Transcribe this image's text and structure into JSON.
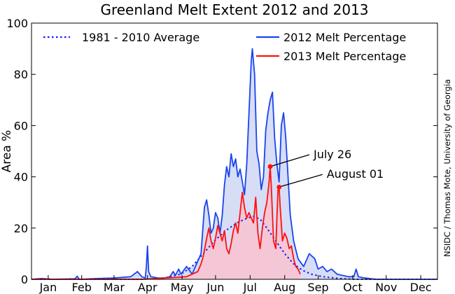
{
  "chart_data": {
    "type": "area",
    "title": "Greenland Melt Extent 2012 and 2013",
    "ylabel": "Area %",
    "xlabel": "",
    "ylim": [
      0,
      100
    ],
    "y_ticks": [
      0,
      20,
      40,
      60,
      80,
      100
    ],
    "x_unit": "day of year",
    "xlim": [
      1,
      365
    ],
    "month_ticks": [
      {
        "label": "Jan",
        "day": 16
      },
      {
        "label": "Feb",
        "day": 46
      },
      {
        "label": "Mar",
        "day": 75
      },
      {
        "label": "Apr",
        "day": 105
      },
      {
        "label": "May",
        "day": 136
      },
      {
        "label": "Jun",
        "day": 166
      },
      {
        "label": "Jul",
        "day": 197
      },
      {
        "label": "Aug",
        "day": 228
      },
      {
        "label": "Sep",
        "day": 258
      },
      {
        "label": "Oct",
        "day": 289
      },
      {
        "label": "Nov",
        "day": 319
      },
      {
        "label": "Dec",
        "day": 350
      }
    ],
    "grid": false,
    "legend_position": "top",
    "source_credit": "NSIDC / Thomas Mote, University of Georgia",
    "series": [
      {
        "name": "1981 - 2010 Average",
        "style": "dotted",
        "color": "#1a1aff",
        "fill": "#d6ddf5",
        "points": [
          [
            1,
            0
          ],
          [
            100,
            0
          ],
          [
            120,
            0.5
          ],
          [
            135,
            2
          ],
          [
            145,
            5
          ],
          [
            155,
            10
          ],
          [
            165,
            15
          ],
          [
            175,
            19
          ],
          [
            185,
            22
          ],
          [
            195,
            24
          ],
          [
            200,
            24.5
          ],
          [
            206,
            23.5
          ],
          [
            212,
            20
          ],
          [
            220,
            15
          ],
          [
            228,
            10
          ],
          [
            236,
            6
          ],
          [
            244,
            3.5
          ],
          [
            252,
            2
          ],
          [
            262,
            1
          ],
          [
            275,
            0.4
          ],
          [
            290,
            0
          ],
          [
            365,
            0
          ]
        ]
      },
      {
        "name": "2012 Melt Percentage",
        "style": "solid",
        "color": "#1a44ee",
        "fill": "#d6ddf5",
        "points": [
          [
            1,
            0
          ],
          [
            10,
            0.3
          ],
          [
            20,
            0
          ],
          [
            40,
            0.2
          ],
          [
            42,
            1.2
          ],
          [
            44,
            0
          ],
          [
            60,
            0.3
          ],
          [
            75,
            0.5
          ],
          [
            90,
            1
          ],
          [
            96,
            3
          ],
          [
            100,
            1
          ],
          [
            103,
            0.5
          ],
          [
            104,
            5
          ],
          [
            105,
            13
          ],
          [
            106,
            3
          ],
          [
            108,
            1
          ],
          [
            115,
            0.5
          ],
          [
            120,
            0.5
          ],
          [
            125,
            1
          ],
          [
            128,
            3
          ],
          [
            130,
            1.5
          ],
          [
            133,
            4
          ],
          [
            135,
            2
          ],
          [
            140,
            5
          ],
          [
            145,
            2
          ],
          [
            150,
            7
          ],
          [
            153,
            10
          ],
          [
            156,
            28
          ],
          [
            158,
            31
          ],
          [
            160,
            25
          ],
          [
            162,
            18
          ],
          [
            164,
            20
          ],
          [
            166,
            26
          ],
          [
            168,
            24
          ],
          [
            170,
            18
          ],
          [
            172,
            25
          ],
          [
            174,
            37
          ],
          [
            176,
            44
          ],
          [
            178,
            40
          ],
          [
            180,
            49
          ],
          [
            182,
            44
          ],
          [
            184,
            47
          ],
          [
            186,
            40
          ],
          [
            188,
            43
          ],
          [
            190,
            38
          ],
          [
            192,
            33
          ],
          [
            194,
            45
          ],
          [
            196,
            65
          ],
          [
            198,
            85
          ],
          [
            199,
            90
          ],
          [
            201,
            80
          ],
          [
            203,
            50
          ],
          [
            205,
            45
          ],
          [
            207,
            35
          ],
          [
            209,
            40
          ],
          [
            211,
            58
          ],
          [
            213,
            65
          ],
          [
            215,
            70
          ],
          [
            217,
            73
          ],
          [
            219,
            55
          ],
          [
            221,
            45
          ],
          [
            223,
            38
          ],
          [
            225,
            60
          ],
          [
            227,
            65
          ],
          [
            229,
            55
          ],
          [
            231,
            40
          ],
          [
            233,
            25
          ],
          [
            236,
            15
          ],
          [
            240,
            8
          ],
          [
            245,
            5
          ],
          [
            250,
            10
          ],
          [
            255,
            8
          ],
          [
            258,
            4
          ],
          [
            262,
            5
          ],
          [
            266,
            3
          ],
          [
            270,
            4
          ],
          [
            275,
            2
          ],
          [
            280,
            1.5
          ],
          [
            285,
            1
          ],
          [
            290,
            1
          ],
          [
            292,
            4
          ],
          [
            294,
            1
          ],
          [
            300,
            0.5
          ],
          [
            310,
            0
          ],
          [
            330,
            0
          ],
          [
            365,
            0
          ]
        ]
      },
      {
        "name": "2013 Melt Percentage",
        "style": "solid",
        "color": "#ff1010",
        "fill": "#f5c6d6",
        "points": [
          [
            1,
            0
          ],
          [
            100,
            0
          ],
          [
            120,
            0.5
          ],
          [
            140,
            1
          ],
          [
            150,
            3
          ],
          [
            153,
            6
          ],
          [
            155,
            9
          ],
          [
            158,
            16
          ],
          [
            160,
            20
          ],
          [
            162,
            15
          ],
          [
            164,
            12
          ],
          [
            166,
            16
          ],
          [
            168,
            21
          ],
          [
            170,
            18
          ],
          [
            172,
            15
          ],
          [
            174,
            19
          ],
          [
            176,
            12
          ],
          [
            178,
            10
          ],
          [
            180,
            14
          ],
          [
            182,
            19
          ],
          [
            184,
            22
          ],
          [
            186,
            18
          ],
          [
            188,
            26
          ],
          [
            190,
            34
          ],
          [
            192,
            28
          ],
          [
            194,
            24
          ],
          [
            196,
            26
          ],
          [
            198,
            24
          ],
          [
            200,
            22
          ],
          [
            202,
            32
          ],
          [
            204,
            18
          ],
          [
            206,
            12
          ],
          [
            208,
            20
          ],
          [
            210,
            26
          ],
          [
            212,
            30
          ],
          [
            214,
            38
          ],
          [
            215,
            44
          ],
          [
            216,
            36
          ],
          [
            218,
            15
          ],
          [
            220,
            12
          ],
          [
            222,
            35
          ],
          [
            223,
            36
          ],
          [
            224,
            28
          ],
          [
            226,
            15
          ],
          [
            228,
            18
          ],
          [
            230,
            16
          ],
          [
            232,
            12
          ],
          [
            234,
            13
          ],
          [
            236,
            8
          ],
          [
            238,
            5
          ],
          [
            240,
            4
          ],
          [
            242,
            2
          ]
        ]
      }
    ],
    "annotations": [
      {
        "label": "July 26",
        "x": 215,
        "y": 44
      },
      {
        "label": "August 01",
        "x": 223,
        "y": 36
      }
    ],
    "colors": {
      "average": "#1a1aff",
      "y2012": "#1a44ee",
      "y2013": "#ff1010"
    }
  }
}
